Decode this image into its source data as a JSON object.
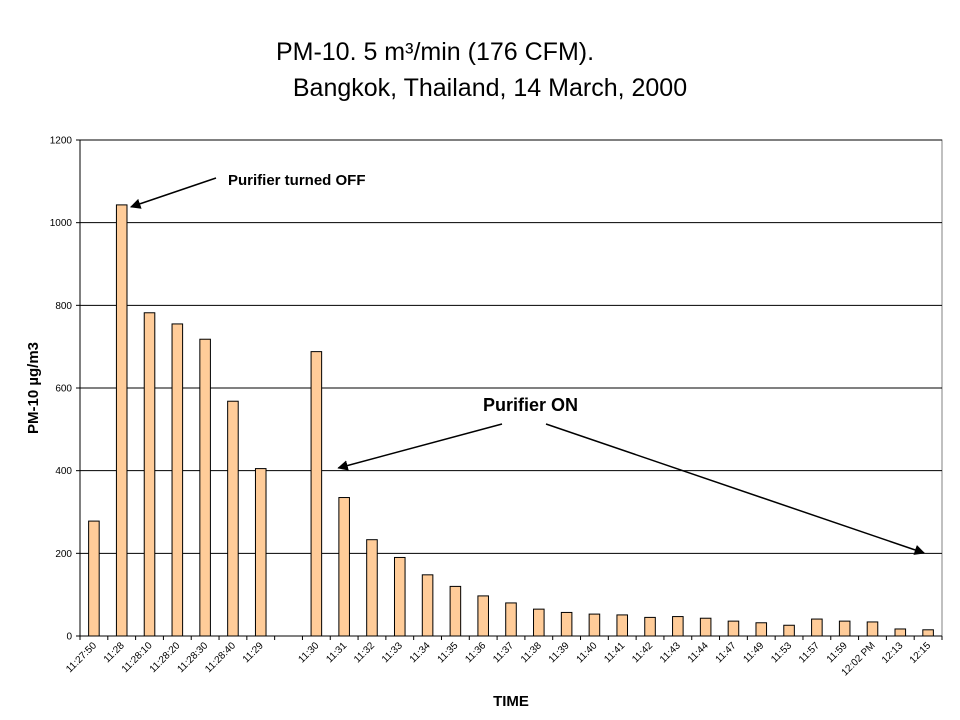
{
  "title_line1": "PM-10. 5 m³/min (176 CFM).",
  "title_line2": "Bangkok, Thailand, 14 March, 2000",
  "chart_data": {
    "type": "bar",
    "xlabel": "TIME",
    "ylabel": "PM-10  µg/m3",
    "ylim": [
      0,
      1200
    ],
    "yticks": [
      0,
      200,
      400,
      600,
      800,
      1000,
      1200
    ],
    "grid": true,
    "bar_color": "#FFCC99",
    "bar_edge_color": "#000000",
    "plot_bg": "#FFFFFF",
    "categories": [
      "11:27:50",
      "11:28",
      "11:28:10",
      "11:28:20",
      "11:28:30",
      "11:28:40",
      "11:29",
      "",
      "11:30",
      "11:31",
      "11:32",
      "11:33",
      "11:34",
      "11:35",
      "11:36",
      "11:37",
      "11:38",
      "11:39",
      "11:40",
      "11:41",
      "11:42",
      "11:43",
      "11:44",
      "11:47",
      "11:49",
      "11:53",
      "11:57",
      "11:59",
      "12:02 PM",
      "12:13",
      "12:15"
    ],
    "values": [
      278,
      1043,
      782,
      755,
      718,
      568,
      405,
      null,
      688,
      335,
      233,
      190,
      148,
      120,
      97,
      80,
      65,
      57,
      53,
      51,
      45,
      47,
      43,
      36,
      32,
      26,
      41,
      36,
      34,
      17,
      15
    ],
    "annotations": [
      {
        "text": "Purifier turned OFF",
        "target_category": "11:28"
      },
      {
        "text": "Purifier ON",
        "target_categories": [
          "11:30",
          "12:15"
        ]
      }
    ]
  }
}
